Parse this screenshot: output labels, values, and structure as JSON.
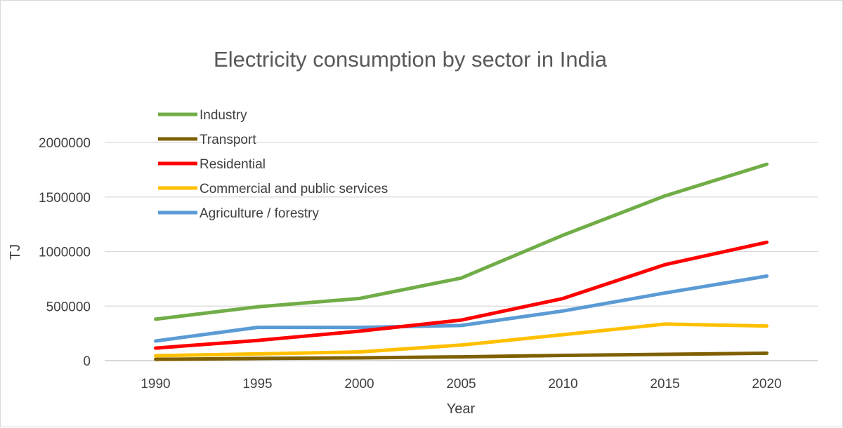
{
  "chart_data": {
    "type": "line",
    "title": "Electricity consumption by sector in India",
    "xlabel": "Year",
    "ylabel": "TJ",
    "x": [
      "1990",
      "1995",
      "2000",
      "2005",
      "2010",
      "2015",
      "2020"
    ],
    "ylim": [
      0,
      2000000
    ],
    "yticks": [
      "0",
      "500000",
      "1000000",
      "1500000",
      "2000000"
    ],
    "ytick_values": [
      0,
      500000,
      1000000,
      1500000,
      2000000
    ],
    "grid": true,
    "legend_position": "top-left",
    "series": [
      {
        "name": "Industry",
        "color": "#70ad47",
        "values": [
          380000,
          493000,
          570000,
          757000,
          1150000,
          1510000,
          1800000
        ]
      },
      {
        "name": "Transport",
        "color": "#7f6000",
        "values": [
          12000,
          20000,
          26000,
          35000,
          48000,
          58000,
          68000
        ]
      },
      {
        "name": "Residential",
        "color": "#ff0000",
        "values": [
          115000,
          185000,
          270000,
          372000,
          570000,
          880000,
          1085000
        ]
      },
      {
        "name": "Commercial and public services",
        "color": "#ffc000",
        "values": [
          45000,
          62000,
          80000,
          143000,
          238000,
          335000,
          318000
        ]
      },
      {
        "name": "Agriculture / forestry",
        "color": "#5b9bd5",
        "values": [
          180000,
          305000,
          305000,
          322000,
          455000,
          620000,
          775000
        ]
      }
    ]
  }
}
